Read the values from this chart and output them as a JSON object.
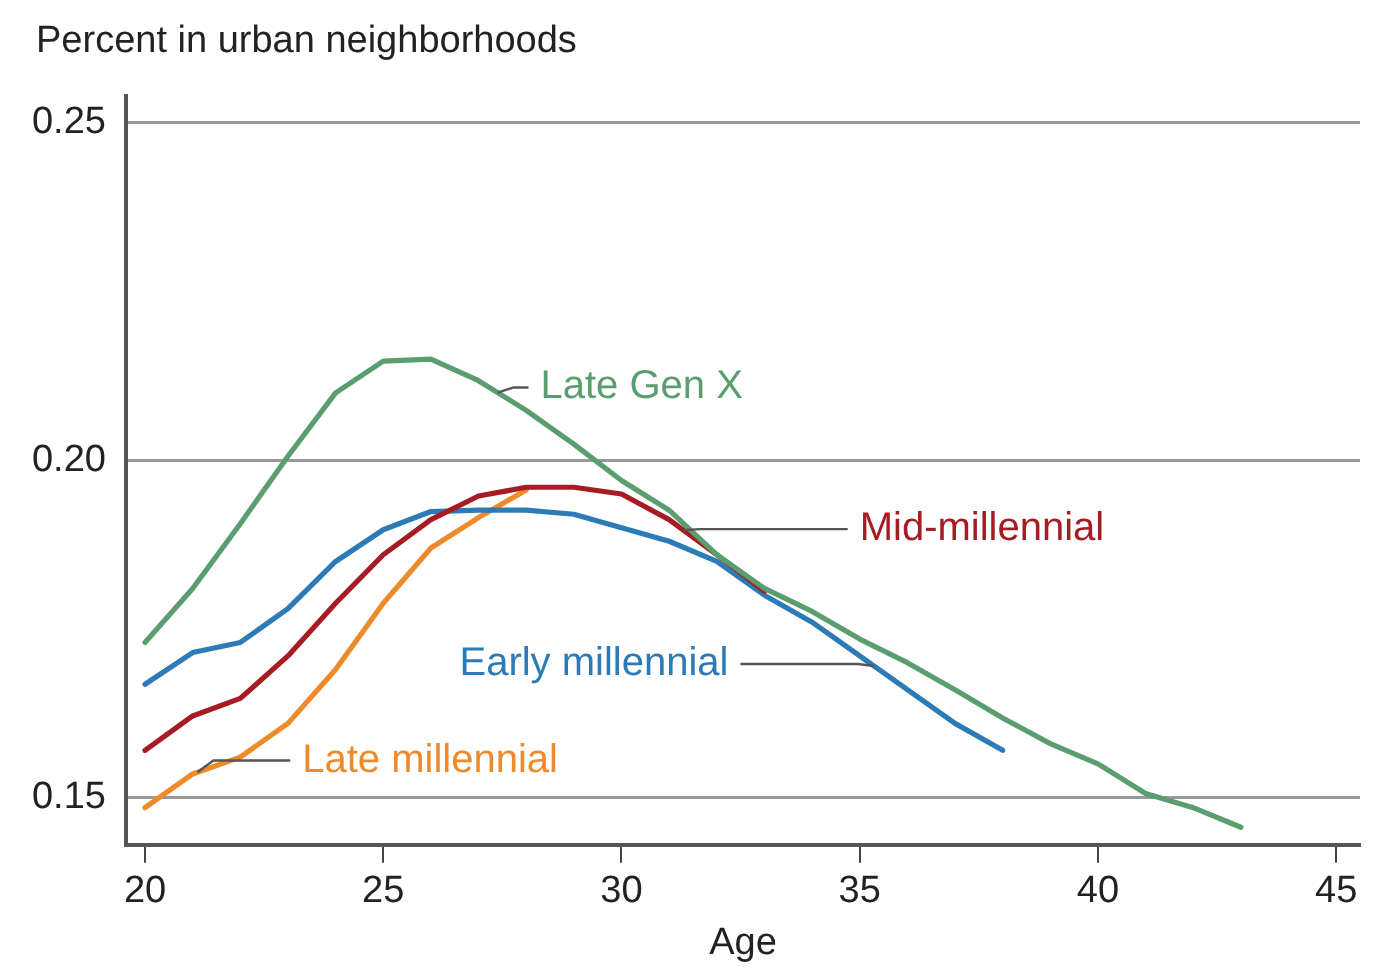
{
  "chart_data": {
    "type": "line",
    "ylabel": "Percent in urban neighborhoods",
    "xlabel": "Age",
    "xlim": [
      19.6,
      45.5
    ],
    "xticks": [
      20,
      25,
      30,
      35,
      40,
      45
    ],
    "ylim": [
      0.143,
      0.254
    ],
    "yticks": [
      0.15,
      {
        "value": 0.2,
        "label": "0.20"
      },
      0.25
    ],
    "grid": "y",
    "legend": false,
    "marker": "none",
    "line_style": "solid",
    "series": [
      {
        "name": "Late Gen X",
        "color": "#5a9e6f",
        "x": [
          20,
          21,
          22,
          23,
          24,
          25,
          26,
          27,
          28,
          29,
          30,
          31,
          32,
          33,
          34,
          35,
          36,
          37,
          38,
          39,
          40,
          41,
          42,
          43
        ],
        "values": [
          0.173,
          0.181,
          0.1906,
          0.2006,
          0.21,
          0.2147,
          0.215,
          0.2118,
          0.2074,
          0.2024,
          0.197,
          0.1926,
          0.186,
          0.181,
          0.1776,
          0.1735,
          0.17,
          0.166,
          0.1618,
          0.158,
          0.155,
          0.1506,
          0.1485,
          0.1456
        ]
      },
      {
        "name": "Mid-millennial",
        "color": "#a61c22",
        "x": [
          20,
          21,
          22,
          23,
          24,
          25,
          26,
          27,
          28,
          29,
          30,
          31,
          32,
          33
        ],
        "values": [
          0.157,
          0.1621,
          0.1647,
          0.171,
          0.1788,
          0.186,
          0.1912,
          0.1947,
          0.196,
          0.196,
          0.195,
          0.1912,
          0.186,
          0.1806
        ]
      },
      {
        "name": "Early millennial",
        "color": "#2c7bb6",
        "x": [
          20,
          21,
          22,
          23,
          24,
          25,
          26,
          27,
          28,
          29,
          30,
          31,
          32,
          33,
          34,
          35,
          36,
          37,
          38
        ],
        "values": [
          0.1668,
          0.1715,
          0.173,
          0.178,
          0.185,
          0.1897,
          0.1924,
          0.1926,
          0.1926,
          0.192,
          0.19,
          0.188,
          0.185,
          0.18,
          0.176,
          0.171,
          0.166,
          0.161,
          0.157
        ]
      },
      {
        "name": "Late millennial",
        "color": "#ef8a2a",
        "x": [
          20,
          21,
          22,
          23,
          24,
          25,
          26,
          27,
          28
        ],
        "values": [
          0.1485,
          0.1535,
          0.156,
          0.161,
          0.169,
          0.1788,
          0.187,
          0.1915,
          0.1956
        ]
      }
    ]
  }
}
